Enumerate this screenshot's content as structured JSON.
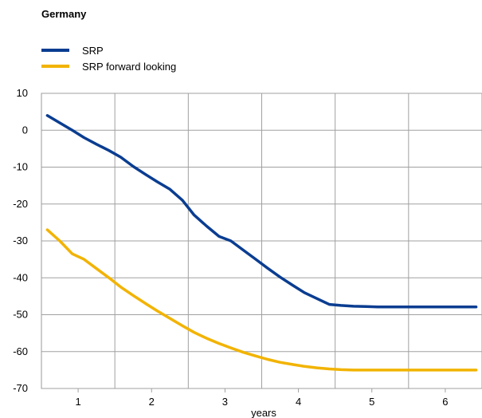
{
  "chart_data": {
    "type": "line",
    "title": "Germany",
    "xlabel": "years",
    "ylabel": "",
    "xlim": [
      0.5,
      6.5
    ],
    "ylim": [
      -70,
      10
    ],
    "yticks": [
      10,
      0,
      -10,
      -20,
      -30,
      -40,
      -50,
      -60,
      -70
    ],
    "categories": [
      "1",
      "2",
      "3",
      "4",
      "5",
      "6"
    ],
    "grid": true,
    "legend_position": "top-left",
    "series": [
      {
        "name": "SRP",
        "color": "#0a3d91",
        "x": [
          0.58,
          0.75,
          0.92,
          1.08,
          1.25,
          1.42,
          1.58,
          1.75,
          1.92,
          2.08,
          2.25,
          2.42,
          2.58,
          2.75,
          2.92,
          3.08,
          3.25,
          3.42,
          3.58,
          3.75,
          3.92,
          4.08,
          4.25,
          4.42,
          4.58,
          4.75,
          4.92,
          5.08,
          5.25,
          5.42,
          5.58,
          5.75,
          5.92,
          6.08,
          6.25,
          6.42
        ],
        "y": [
          4.0,
          2.0,
          0.0,
          -2.0,
          -3.8,
          -5.5,
          -7.3,
          -9.8,
          -12.0,
          -14.0,
          -16.0,
          -19.0,
          -23.0,
          -26.0,
          -28.8,
          -30.0,
          -32.5,
          -35.0,
          -37.4,
          -39.8,
          -42.0,
          -44.0,
          -45.6,
          -47.2,
          -47.5,
          -47.7,
          -47.8,
          -47.9,
          -47.9,
          -47.9,
          -47.9,
          -47.9,
          -47.9,
          -47.9,
          -47.9,
          -47.9
        ]
      },
      {
        "name": "SRP forward looking",
        "color": "#f2b300",
        "x": [
          0.58,
          0.75,
          0.92,
          1.08,
          1.25,
          1.42,
          1.58,
          1.75,
          1.92,
          2.08,
          2.25,
          2.42,
          2.58,
          2.75,
          2.92,
          3.08,
          3.25,
          3.42,
          3.58,
          3.75,
          3.92,
          4.08,
          4.25,
          4.42,
          4.58,
          4.75,
          4.92,
          5.08,
          5.25,
          5.42,
          5.58,
          5.75,
          5.92,
          6.08,
          6.25,
          6.42
        ],
        "y": [
          -27.0,
          -30.0,
          -33.5,
          -35.0,
          -37.5,
          -40.0,
          -42.5,
          -44.8,
          -47.0,
          -49.0,
          -51.0,
          -53.0,
          -54.8,
          -56.4,
          -57.8,
          -59.0,
          -60.2,
          -61.2,
          -62.1,
          -62.9,
          -63.5,
          -64.0,
          -64.4,
          -64.7,
          -64.9,
          -65.0,
          -65.0,
          -65.0,
          -65.0,
          -65.0,
          -65.0,
          -65.0,
          -65.0,
          -65.0,
          -65.0,
          -65.0
        ]
      }
    ]
  }
}
